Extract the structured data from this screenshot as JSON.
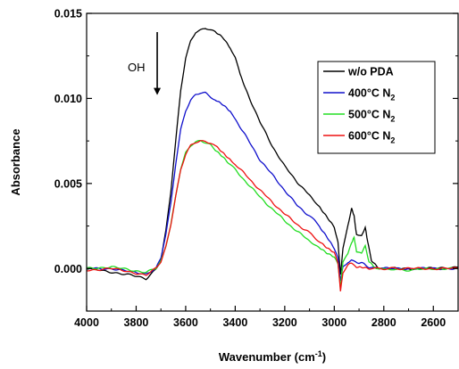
{
  "chart_data": {
    "type": "line",
    "title": "",
    "xlabel": "Wavenumber (cm",
    "xlabel_sup": "-1",
    "xlabel_close": ")",
    "ylabel": "Absorbance",
    "xlim": [
      4000,
      2500
    ],
    "ylim": [
      -0.0025,
      0.015
    ],
    "x_reversed": true,
    "grid": false,
    "legend_position": "top-right",
    "x_ticks": [
      4000,
      3800,
      3600,
      3400,
      3200,
      3000,
      2800,
      2600
    ],
    "x_tick_labels": [
      "4000",
      "3800",
      "3600",
      "3400",
      "3200",
      "3000",
      "2800",
      "2600"
    ],
    "y_ticks": [
      0.0,
      0.005,
      0.01,
      0.015
    ],
    "y_tick_labels": [
      "0.000",
      "0.005",
      "0.010",
      "0.015"
    ],
    "annotation": {
      "text": "OH",
      "arrow": "down",
      "x": 3715,
      "y_from": 0.0139,
      "y_to": 0.0102
    },
    "series": [
      {
        "name": "w/o PDA",
        "name_sub": "",
        "name_base": "w/o PDA",
        "color": "#000000",
        "points": [
          [
            4000,
            0.0
          ],
          [
            3900,
            -0.0002
          ],
          [
            3820,
            -0.0004
          ],
          [
            3760,
            -0.0006
          ],
          [
            3720,
            0.0
          ],
          [
            3700,
            0.0005
          ],
          [
            3680,
            0.0022
          ],
          [
            3660,
            0.0045
          ],
          [
            3640,
            0.0075
          ],
          [
            3620,
            0.0105
          ],
          [
            3600,
            0.0124
          ],
          [
            3580,
            0.0134
          ],
          [
            3560,
            0.0139
          ],
          [
            3540,
            0.014
          ],
          [
            3520,
            0.0141
          ],
          [
            3500,
            0.014
          ],
          [
            3480,
            0.0139
          ],
          [
            3450,
            0.0136
          ],
          [
            3420,
            0.013
          ],
          [
            3400,
            0.0124
          ],
          [
            3380,
            0.0114
          ],
          [
            3350,
            0.0103
          ],
          [
            3300,
            0.0086
          ],
          [
            3250,
            0.0072
          ],
          [
            3200,
            0.006
          ],
          [
            3150,
            0.0051
          ],
          [
            3100,
            0.0043
          ],
          [
            3060,
            0.0036
          ],
          [
            3030,
            0.003
          ],
          [
            3000,
            0.0024
          ],
          [
            2985,
            0.0015
          ],
          [
            2975,
            -0.0004
          ],
          [
            2965,
            0.0012
          ],
          [
            2945,
            0.0025
          ],
          [
            2930,
            0.0035
          ],
          [
            2920,
            0.0031
          ],
          [
            2910,
            0.002
          ],
          [
            2890,
            0.0019
          ],
          [
            2875,
            0.0024
          ],
          [
            2865,
            0.0016
          ],
          [
            2850,
            0.0005
          ],
          [
            2820,
            0.0
          ],
          [
            2700,
            0.0
          ],
          [
            2600,
            0.0
          ],
          [
            2500,
            0.0001
          ]
        ]
      },
      {
        "name": "400°C N2",
        "name_base": "400°C N",
        "name_sub": "2",
        "color": "#1010cc",
        "points": [
          [
            4000,
            0.0
          ],
          [
            3900,
            0.0
          ],
          [
            3820,
            -0.0002
          ],
          [
            3760,
            -0.0003
          ],
          [
            3720,
            0.0
          ],
          [
            3700,
            0.0006
          ],
          [
            3680,
            0.002
          ],
          [
            3660,
            0.0038
          ],
          [
            3640,
            0.0062
          ],
          [
            3620,
            0.0082
          ],
          [
            3600,
            0.0093
          ],
          [
            3580,
            0.0099
          ],
          [
            3560,
            0.0102
          ],
          [
            3540,
            0.0103
          ],
          [
            3520,
            0.0103
          ],
          [
            3500,
            0.0101
          ],
          [
            3480,
            0.0099
          ],
          [
            3450,
            0.0096
          ],
          [
            3420,
            0.0092
          ],
          [
            3400,
            0.0088
          ],
          [
            3350,
            0.0076
          ],
          [
            3300,
            0.0064
          ],
          [
            3250,
            0.0055
          ],
          [
            3200,
            0.0046
          ],
          [
            3150,
            0.0037
          ],
          [
            3100,
            0.0031
          ],
          [
            3060,
            0.0025
          ],
          [
            3030,
            0.0019
          ],
          [
            3000,
            0.0012
          ],
          [
            2985,
            0.0006
          ],
          [
            2975,
            -0.0007
          ],
          [
            2965,
            0.0001
          ],
          [
            2945,
            0.0004
          ],
          [
            2930,
            0.0005
          ],
          [
            2910,
            0.0003
          ],
          [
            2880,
            0.0003
          ],
          [
            2860,
            0.0001
          ],
          [
            2800,
            0.0
          ],
          [
            2600,
            0.0
          ],
          [
            2500,
            0.0
          ]
        ]
      },
      {
        "name": "500°C N2",
        "name_base": "500°C  N",
        "name_sub": "2",
        "color": "#22dd22",
        "points": [
          [
            4000,
            0.0
          ],
          [
            3900,
            0.0001
          ],
          [
            3820,
            -0.0001
          ],
          [
            3760,
            -0.0002
          ],
          [
            3720,
            0.0
          ],
          [
            3700,
            0.0004
          ],
          [
            3680,
            0.0013
          ],
          [
            3660,
            0.0026
          ],
          [
            3640,
            0.0043
          ],
          [
            3620,
            0.0059
          ],
          [
            3600,
            0.0068
          ],
          [
            3580,
            0.0072
          ],
          [
            3560,
            0.0074
          ],
          [
            3540,
            0.0075
          ],
          [
            3520,
            0.0074
          ],
          [
            3500,
            0.0073
          ],
          [
            3480,
            0.007
          ],
          [
            3450,
            0.0066
          ],
          [
            3420,
            0.0061
          ],
          [
            3400,
            0.0058
          ],
          [
            3350,
            0.005
          ],
          [
            3300,
            0.0042
          ],
          [
            3250,
            0.0035
          ],
          [
            3200,
            0.0028
          ],
          [
            3150,
            0.0022
          ],
          [
            3100,
            0.0016
          ],
          [
            3060,
            0.0012
          ],
          [
            3030,
            0.0009
          ],
          [
            3000,
            0.0007
          ],
          [
            2985,
            0.0003
          ],
          [
            2975,
            -0.0012
          ],
          [
            2965,
            0.0004
          ],
          [
            2945,
            0.0009
          ],
          [
            2930,
            0.0015
          ],
          [
            2920,
            0.0018
          ],
          [
            2910,
            0.001
          ],
          [
            2890,
            0.0009
          ],
          [
            2875,
            0.0013
          ],
          [
            2860,
            0.0004
          ],
          [
            2830,
            0.0
          ],
          [
            2700,
            -0.0001
          ],
          [
            2600,
            0.0
          ],
          [
            2500,
            0.0
          ]
        ]
      },
      {
        "name": "600°C N2",
        "name_base": "600°C  N",
        "name_sub": "2",
        "color": "#ee1111",
        "points": [
          [
            4000,
            -0.0001
          ],
          [
            3900,
            0.0
          ],
          [
            3820,
            -0.0002
          ],
          [
            3760,
            -0.0004
          ],
          [
            3720,
            0.0
          ],
          [
            3700,
            0.0004
          ],
          [
            3680,
            0.0013
          ],
          [
            3660,
            0.0026
          ],
          [
            3640,
            0.0043
          ],
          [
            3620,
            0.0058
          ],
          [
            3600,
            0.0067
          ],
          [
            3580,
            0.0072
          ],
          [
            3560,
            0.0074
          ],
          [
            3540,
            0.0075
          ],
          [
            3520,
            0.0075
          ],
          [
            3500,
            0.0074
          ],
          [
            3480,
            0.0072
          ],
          [
            3450,
            0.0068
          ],
          [
            3420,
            0.0064
          ],
          [
            3400,
            0.0061
          ],
          [
            3350,
            0.0054
          ],
          [
            3300,
            0.0046
          ],
          [
            3250,
            0.0039
          ],
          [
            3200,
            0.0032
          ],
          [
            3150,
            0.0026
          ],
          [
            3100,
            0.0021
          ],
          [
            3060,
            0.0016
          ],
          [
            3030,
            0.0012
          ],
          [
            3000,
            0.0009
          ],
          [
            2985,
            0.0003
          ],
          [
            2975,
            -0.0013
          ],
          [
            2965,
            -0.0002
          ],
          [
            2945,
            0.0002
          ],
          [
            2930,
            0.0003
          ],
          [
            2910,
            0.0001
          ],
          [
            2880,
            0.0001
          ],
          [
            2850,
            0.0
          ],
          [
            2700,
            0.0
          ],
          [
            2600,
            0.0
          ],
          [
            2500,
            0.0
          ]
        ]
      }
    ]
  }
}
